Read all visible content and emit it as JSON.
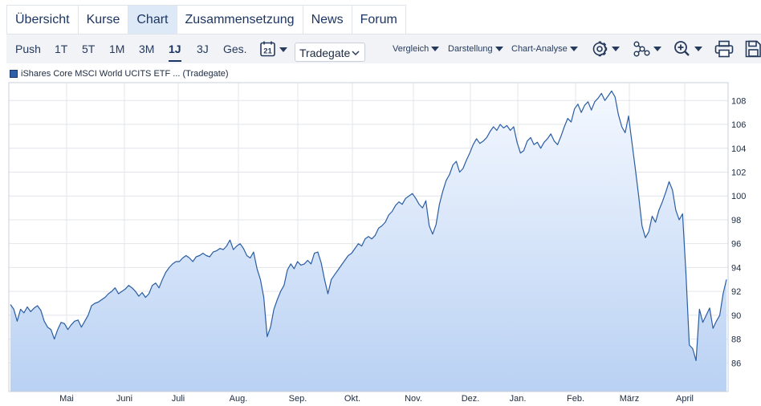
{
  "tabs": [
    {
      "label": "Übersicht",
      "active": false
    },
    {
      "label": "Kurse",
      "active": false
    },
    {
      "label": "Chart",
      "active": true
    },
    {
      "label": "Zusammensetzung",
      "active": false
    },
    {
      "label": "News",
      "active": false
    },
    {
      "label": "Forum",
      "active": false
    }
  ],
  "toolbar": {
    "ranges": [
      "Push",
      "1T",
      "5T",
      "1M",
      "3M",
      "1J",
      "3J",
      "Ges."
    ],
    "active_range": "1J",
    "calendar_day": "21",
    "exchange": "Tradegate",
    "vergleich": "Vergleich",
    "darstellung": "Darstellung",
    "chart_analyse": "Chart-Analyse",
    "icons": [
      "gear-icon",
      "network-icon",
      "zoom-in-icon",
      "print-icon",
      "save-icon"
    ]
  },
  "legend": {
    "label": "iShares Core MSCI World UCITS ETF ... (Tradegate)",
    "color": "#2f5fa6"
  },
  "chart_data": {
    "type": "area",
    "series": [
      {
        "name": "iShares Core MSCI World UCITS ETF ... (Tradegate)"
      }
    ],
    "x_tick_labels": [
      "Mai",
      "Juni",
      "Juli",
      "Aug.",
      "Sep.",
      "Okt.",
      "Nov.",
      "Dez.",
      "Jan.",
      "Feb.",
      "März",
      "April"
    ],
    "y_ticks": [
      86,
      88,
      90,
      92,
      94,
      96,
      98,
      100,
      102,
      104,
      106,
      108
    ],
    "ylim": [
      83.6,
      109.5
    ],
    "grid": true,
    "points": [
      [
        0,
        90.9
      ],
      [
        1,
        90.5
      ],
      [
        2,
        89.5
      ],
      [
        3,
        90.5
      ],
      [
        4,
        90.2
      ],
      [
        5,
        90.7
      ],
      [
        6,
        90.3
      ],
      [
        7,
        90.6
      ],
      [
        8,
        90.8
      ],
      [
        9,
        90.4
      ],
      [
        10,
        89.5
      ],
      [
        11,
        89.0
      ],
      [
        12,
        88.8
      ],
      [
        13,
        88.0
      ],
      [
        14,
        88.8
      ],
      [
        15,
        89.4
      ],
      [
        16,
        89.3
      ],
      [
        17,
        88.8
      ],
      [
        18,
        89.2
      ],
      [
        19,
        89.5
      ],
      [
        20,
        89.6
      ],
      [
        21,
        89.0
      ],
      [
        22,
        89.5
      ],
      [
        23,
        90.0
      ],
      [
        24,
        90.8
      ],
      [
        25,
        91.0
      ],
      [
        26,
        91.1
      ],
      [
        27,
        91.3
      ],
      [
        28,
        91.5
      ],
      [
        29,
        91.8
      ],
      [
        30,
        92.0
      ],
      [
        31,
        92.3
      ],
      [
        32,
        91.8
      ],
      [
        33,
        92.0
      ],
      [
        34,
        92.2
      ],
      [
        35,
        92.5
      ],
      [
        36,
        92.3
      ],
      [
        37,
        92.0
      ],
      [
        38,
        91.6
      ],
      [
        39,
        91.9
      ],
      [
        40,
        91.5
      ],
      [
        41,
        91.8
      ],
      [
        42,
        92.5
      ],
      [
        43,
        92.7
      ],
      [
        44,
        92.3
      ],
      [
        45,
        93.0
      ],
      [
        46,
        93.6
      ],
      [
        47,
        94.0
      ],
      [
        48,
        94.3
      ],
      [
        49,
        94.5
      ],
      [
        50,
        94.5
      ],
      [
        51,
        94.8
      ],
      [
        52,
        95.0
      ],
      [
        53,
        94.8
      ],
      [
        54,
        94.5
      ],
      [
        55,
        94.9
      ],
      [
        56,
        95.0
      ],
      [
        57,
        95.2
      ],
      [
        58,
        95.0
      ],
      [
        59,
        94.9
      ],
      [
        60,
        95.3
      ],
      [
        61,
        95.4
      ],
      [
        62,
        95.6
      ],
      [
        63,
        95.5
      ],
      [
        64,
        95.8
      ],
      [
        65,
        96.3
      ],
      [
        66,
        95.5
      ],
      [
        67,
        95.8
      ],
      [
        68,
        96.0
      ],
      [
        69,
        95.6
      ],
      [
        70,
        95.0
      ],
      [
        71,
        94.8
      ],
      [
        72,
        95.3
      ],
      [
        73,
        93.9
      ],
      [
        74,
        93.0
      ],
      [
        75,
        91.5
      ],
      [
        76,
        88.2
      ],
      [
        77,
        89.0
      ],
      [
        78,
        90.5
      ],
      [
        79,
        91.3
      ],
      [
        80,
        92.0
      ],
      [
        81,
        92.5
      ],
      [
        82,
        93.8
      ],
      [
        83,
        94.3
      ],
      [
        84,
        93.9
      ],
      [
        85,
        94.5
      ],
      [
        86,
        94.2
      ],
      [
        87,
        94.3
      ],
      [
        88,
        94.6
      ],
      [
        89,
        94.3
      ],
      [
        90,
        95.2
      ],
      [
        91,
        95.3
      ],
      [
        92,
        94.4
      ],
      [
        93,
        93.0
      ],
      [
        94,
        91.8
      ],
      [
        95,
        93.0
      ],
      [
        96,
        93.4
      ],
      [
        97,
        93.8
      ],
      [
        98,
        94.2
      ],
      [
        99,
        94.6
      ],
      [
        100,
        95.0
      ],
      [
        101,
        95.2
      ],
      [
        102,
        95.6
      ],
      [
        103,
        96.0
      ],
      [
        104,
        95.8
      ],
      [
        105,
        96.4
      ],
      [
        106,
        96.6
      ],
      [
        107,
        96.4
      ],
      [
        108,
        96.7
      ],
      [
        109,
        97.3
      ],
      [
        110,
        97.5
      ],
      [
        111,
        97.8
      ],
      [
        112,
        98.4
      ],
      [
        113,
        98.7
      ],
      [
        114,
        99.2
      ],
      [
        115,
        99.5
      ],
      [
        116,
        99.3
      ],
      [
        117,
        99.8
      ],
      [
        118,
        100.0
      ],
      [
        119,
        100.2
      ],
      [
        120,
        99.8
      ],
      [
        121,
        99.3
      ],
      [
        122,
        99.0
      ],
      [
        123,
        99.6
      ],
      [
        124,
        97.5
      ],
      [
        125,
        96.8
      ],
      [
        126,
        97.6
      ],
      [
        127,
        99.3
      ],
      [
        128,
        100.4
      ],
      [
        129,
        101.3
      ],
      [
        130,
        101.8
      ],
      [
        131,
        102.6
      ],
      [
        132,
        102.9
      ],
      [
        133,
        102.0
      ],
      [
        134,
        102.3
      ],
      [
        135,
        103.0
      ],
      [
        136,
        103.6
      ],
      [
        137,
        104.3
      ],
      [
        138,
        104.8
      ],
      [
        139,
        104.4
      ],
      [
        140,
        104.6
      ],
      [
        141,
        104.9
      ],
      [
        142,
        105.4
      ],
      [
        143,
        105.8
      ],
      [
        144,
        105.5
      ],
      [
        145,
        106.0
      ],
      [
        146,
        105.7
      ],
      [
        147,
        105.9
      ],
      [
        148,
        105.5
      ],
      [
        149,
        105.8
      ],
      [
        150,
        104.5
      ],
      [
        151,
        103.6
      ],
      [
        152,
        103.8
      ],
      [
        153,
        104.6
      ],
      [
        154,
        104.9
      ],
      [
        155,
        104.3
      ],
      [
        156,
        104.5
      ],
      [
        157,
        104.0
      ],
      [
        158,
        104.5
      ],
      [
        159,
        104.8
      ],
      [
        160,
        105.2
      ],
      [
        161,
        104.6
      ],
      [
        162,
        104.3
      ],
      [
        163,
        105.0
      ],
      [
        164,
        105.8
      ],
      [
        165,
        106.5
      ],
      [
        166,
        106.2
      ],
      [
        167,
        107.3
      ],
      [
        168,
        107.7
      ],
      [
        169,
        107.0
      ],
      [
        170,
        107.6
      ],
      [
        171,
        107.9
      ],
      [
        172,
        107.2
      ],
      [
        173,
        107.9
      ],
      [
        174,
        108.2
      ],
      [
        175,
        108.6
      ],
      [
        176,
        108.0
      ],
      [
        177,
        108.4
      ],
      [
        178,
        108.8
      ],
      [
        179,
        108.3
      ],
      [
        180,
        106.8
      ],
      [
        181,
        105.8
      ],
      [
        182,
        105.3
      ],
      [
        183,
        106.7
      ],
      [
        184,
        104.5
      ],
      [
        185,
        102.3
      ],
      [
        186,
        100.0
      ],
      [
        187,
        97.5
      ],
      [
        188,
        96.5
      ],
      [
        189,
        97.0
      ],
      [
        190,
        98.3
      ],
      [
        191,
        97.8
      ],
      [
        192,
        98.8
      ],
      [
        193,
        99.5
      ],
      [
        194,
        100.3
      ],
      [
        195,
        101.2
      ],
      [
        196,
        100.5
      ],
      [
        197,
        98.8
      ],
      [
        198,
        98.0
      ],
      [
        199,
        98.5
      ],
      [
        200,
        93.5
      ],
      [
        201,
        87.5
      ],
      [
        202,
        87.2
      ],
      [
        203,
        86.2
      ],
      [
        204,
        90.5
      ],
      [
        205,
        89.4
      ],
      [
        206,
        90.0
      ],
      [
        207,
        90.6
      ],
      [
        208,
        88.9
      ],
      [
        209,
        89.5
      ],
      [
        210,
        90.0
      ],
      [
        211,
        91.8
      ],
      [
        212,
        93.0
      ]
    ]
  }
}
